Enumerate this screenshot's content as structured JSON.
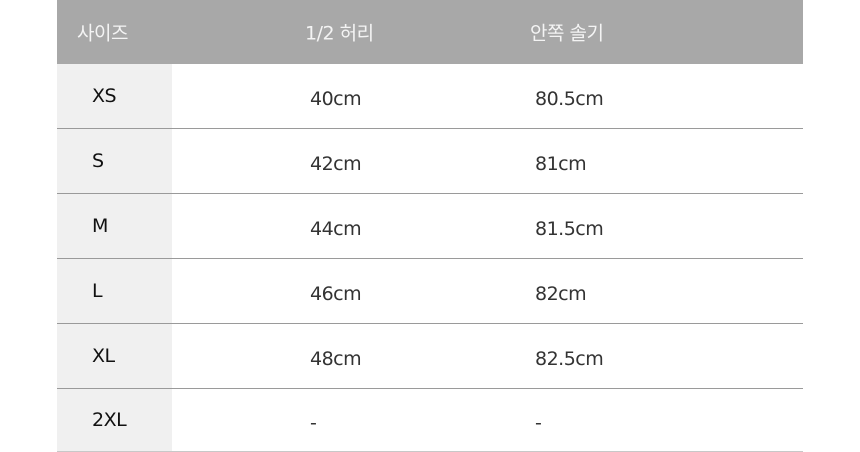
{
  "table": {
    "headers": [
      "사이즈",
      "1/2 허리",
      "안쪽 솔기"
    ],
    "rows": [
      [
        "XS",
        "40cm",
        "80.5cm"
      ],
      [
        "S",
        "42cm",
        "81cm"
      ],
      [
        "M",
        "44cm",
        "81.5cm"
      ],
      [
        "L",
        "46cm",
        "82cm"
      ],
      [
        "XL",
        "48cm",
        "82.5cm"
      ],
      [
        "2XL",
        "-",
        "-"
      ]
    ]
  },
  "colors": {
    "header_bg": "#a8a8a8",
    "size_column_bg": "#f0f0f0"
  }
}
